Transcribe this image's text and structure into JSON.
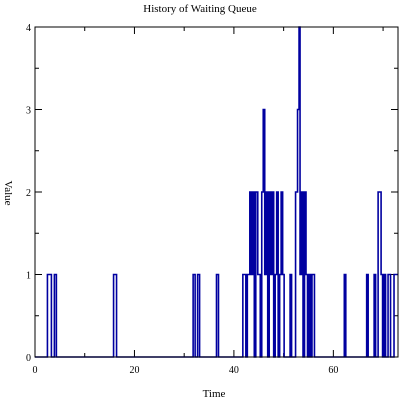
{
  "chart_data": {
    "type": "line",
    "title": "History of Waiting Queue",
    "xlabel": "Time",
    "ylabel": "Value",
    "xlim": [
      0,
      73
    ],
    "ylim": [
      0,
      4
    ],
    "x_ticks": [
      0,
      20,
      40,
      60
    ],
    "y_ticks": [
      0,
      1,
      2,
      3,
      4
    ],
    "grid": false,
    "line_color": "#0000a0",
    "step": true,
    "series": [
      {
        "points": [
          [
            0,
            0
          ],
          [
            2.5,
            1
          ],
          [
            3.3,
            0
          ],
          [
            3.9,
            1
          ],
          [
            4.3,
            0
          ],
          [
            15.8,
            1
          ],
          [
            16.4,
            0
          ],
          [
            31.8,
            1
          ],
          [
            32.2,
            0
          ],
          [
            32.7,
            1
          ],
          [
            33.1,
            0
          ],
          [
            36.5,
            1
          ],
          [
            36.9,
            0
          ],
          [
            41.8,
            1
          ],
          [
            42.4,
            0
          ],
          [
            42.7,
            1
          ],
          [
            43.2,
            2
          ],
          [
            43.5,
            1
          ],
          [
            43.8,
            2
          ],
          [
            44.1,
            0
          ],
          [
            44.4,
            2
          ],
          [
            44.8,
            1
          ],
          [
            45.3,
            0
          ],
          [
            45.6,
            2
          ],
          [
            45.9,
            3
          ],
          [
            46.2,
            1
          ],
          [
            46.5,
            2
          ],
          [
            46.8,
            0
          ],
          [
            47.1,
            2
          ],
          [
            47.4,
            1
          ],
          [
            47.7,
            2
          ],
          [
            48.0,
            0
          ],
          [
            48.3,
            1
          ],
          [
            48.6,
            2
          ],
          [
            48.9,
            0
          ],
          [
            49.2,
            1
          ],
          [
            49.5,
            2
          ],
          [
            49.8,
            1
          ],
          [
            50.1,
            0
          ],
          [
            51.3,
            1
          ],
          [
            51.6,
            0
          ],
          [
            52.4,
            2
          ],
          [
            52.8,
            3
          ],
          [
            53.1,
            4
          ],
          [
            53.3,
            1
          ],
          [
            53.6,
            2
          ],
          [
            53.9,
            0
          ],
          [
            54.2,
            2
          ],
          [
            54.5,
            1
          ],
          [
            54.8,
            0
          ],
          [
            55.1,
            1
          ],
          [
            55.4,
            0
          ],
          [
            55.7,
            1
          ],
          [
            56.2,
            0
          ],
          [
            62.2,
            1
          ],
          [
            62.5,
            0
          ],
          [
            66.7,
            1
          ],
          [
            67.0,
            0
          ],
          [
            68.2,
            1
          ],
          [
            68.5,
            0
          ],
          [
            69.0,
            2
          ],
          [
            69.6,
            1
          ],
          [
            69.9,
            0
          ],
          [
            70.2,
            1
          ],
          [
            70.5,
            0
          ],
          [
            71.0,
            1
          ],
          [
            71.5,
            0
          ],
          [
            72.2,
            1
          ],
          [
            73.0,
            1
          ]
        ]
      }
    ]
  }
}
